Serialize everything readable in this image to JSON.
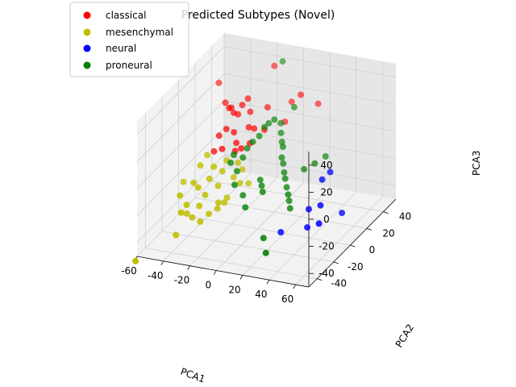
{
  "chart_data": {
    "type": "scatter",
    "title": "Predicted Subtypes (Novel)",
    "xlabel": "PCA1",
    "ylabel": "PCA2",
    "zlabel": "PCA3",
    "xlim": [
      -60,
      70
    ],
    "ylim": [
      -50,
      55
    ],
    "zlim": [
      -50,
      50
    ],
    "xticks": [
      -60,
      -40,
      -20,
      0,
      20,
      40,
      60
    ],
    "yticks": [
      -40,
      -20,
      0,
      20,
      40
    ],
    "zticks": [
      -40,
      -20,
      0,
      20,
      40
    ],
    "grid": true,
    "legend_position": "top-left",
    "series": [
      {
        "name": "classical",
        "color": "#ff0000",
        "points": [
          [
            -32,
            12,
            30
          ],
          [
            -28,
            10,
            28
          ],
          [
            -25,
            8,
            30
          ],
          [
            -22,
            6,
            28
          ],
          [
            -20,
            8,
            26
          ],
          [
            -18,
            10,
            32
          ],
          [
            -15,
            12,
            36
          ],
          [
            -12,
            10,
            28
          ],
          [
            -10,
            5,
            20
          ],
          [
            -18,
            0,
            18
          ],
          [
            -25,
            2,
            18
          ],
          [
            -28,
            -2,
            15
          ],
          [
            -15,
            -2,
            12
          ],
          [
            -22,
            -8,
            10
          ],
          [
            -14,
            -5,
            8
          ],
          [
            -10,
            -4,
            10
          ],
          [
            -6,
            0,
            12
          ],
          [
            -4,
            2,
            22
          ],
          [
            0,
            8,
            18
          ],
          [
            -2,
            15,
            30
          ],
          [
            10,
            25,
            30
          ],
          [
            8,
            20,
            18
          ],
          [
            -42,
            20,
            38
          ],
          [
            -5,
            28,
            52
          ],
          [
            20,
            20,
            40
          ],
          [
            30,
            25,
            32
          ],
          [
            -30,
            -5,
            5
          ]
        ]
      },
      {
        "name": "mesenchymal",
        "color": "#bfbf00",
        "points": [
          [
            -40,
            -30,
            -14
          ],
          [
            -38,
            -32,
            -25
          ],
          [
            -35,
            -30,
            -20
          ],
          [
            -32,
            -28,
            -30
          ],
          [
            -30,
            -24,
            -10
          ],
          [
            -28,
            -26,
            -22
          ],
          [
            -26,
            -22,
            -16
          ],
          [
            -24,
            -20,
            -5
          ],
          [
            -22,
            -18,
            3
          ],
          [
            -20,
            -16,
            -12
          ],
          [
            -18,
            -14,
            -2
          ],
          [
            -16,
            -12,
            5
          ],
          [
            -14,
            -18,
            -22
          ],
          [
            -12,
            -10,
            -8
          ],
          [
            -10,
            -8,
            2
          ],
          [
            -8,
            -6,
            -4
          ],
          [
            -32,
            -10,
            5
          ],
          [
            -34,
            -15,
            0
          ],
          [
            -36,
            -20,
            -10
          ],
          [
            -38,
            -25,
            -30
          ],
          [
            -40,
            -35,
            -40
          ],
          [
            -26,
            -28,
            -32
          ],
          [
            -22,
            -24,
            -28
          ],
          [
            -18,
            -20,
            -26
          ],
          [
            -16,
            -22,
            -20
          ],
          [
            -12,
            -18,
            -18
          ],
          [
            -6,
            -12,
            -10
          ],
          [
            -2,
            -8,
            -12
          ],
          [
            -50,
            -10,
            -18
          ],
          [
            -58,
            -55,
            -50
          ]
        ]
      },
      {
        "name": "neural",
        "color": "#0000ff",
        "points": [
          [
            55,
            -10,
            2
          ],
          [
            58,
            -5,
            5
          ],
          [
            60,
            -20,
            -10
          ],
          [
            62,
            -25,
            -20
          ],
          [
            50,
            -20,
            -28
          ],
          [
            48,
            -15,
            -18
          ],
          [
            30,
            -20,
            -35
          ],
          [
            70,
            -10,
            -20
          ]
        ]
      },
      {
        "name": "proneural",
        "color": "#008000",
        "points": [
          [
            -15,
            -5,
            5
          ],
          [
            -10,
            -2,
            2
          ],
          [
            -8,
            0,
            8
          ],
          [
            -5,
            2,
            12
          ],
          [
            -2,
            5,
            15
          ],
          [
            0,
            8,
            20
          ],
          [
            2,
            10,
            22
          ],
          [
            5,
            12,
            24
          ],
          [
            8,
            15,
            20
          ],
          [
            10,
            12,
            15
          ],
          [
            12,
            10,
            10
          ],
          [
            14,
            8,
            8
          ],
          [
            15,
            5,
            2
          ],
          [
            18,
            2,
            0
          ],
          [
            20,
            0,
            -5
          ],
          [
            22,
            -2,
            -8
          ],
          [
            25,
            -5,
            -12
          ],
          [
            28,
            -8,
            -15
          ],
          [
            30,
            -10,
            -18
          ],
          [
            32,
            -12,
            -22
          ],
          [
            5,
            -5,
            -10
          ],
          [
            8,
            -8,
            -12
          ],
          [
            10,
            -10,
            -15
          ],
          [
            0,
            -15,
            -25
          ],
          [
            -5,
            -10,
            -20
          ],
          [
            -10,
            -12,
            -12
          ],
          [
            -12,
            -6,
            -6
          ],
          [
            -18,
            -4,
            -2
          ],
          [
            35,
            0,
            0
          ],
          [
            40,
            5,
            2
          ],
          [
            15,
            20,
            30
          ],
          [
            0,
            30,
            55
          ],
          [
            45,
            10,
            5
          ],
          [
            20,
            -25,
            -38
          ],
          [
            25,
            -30,
            -45
          ]
        ]
      }
    ]
  }
}
